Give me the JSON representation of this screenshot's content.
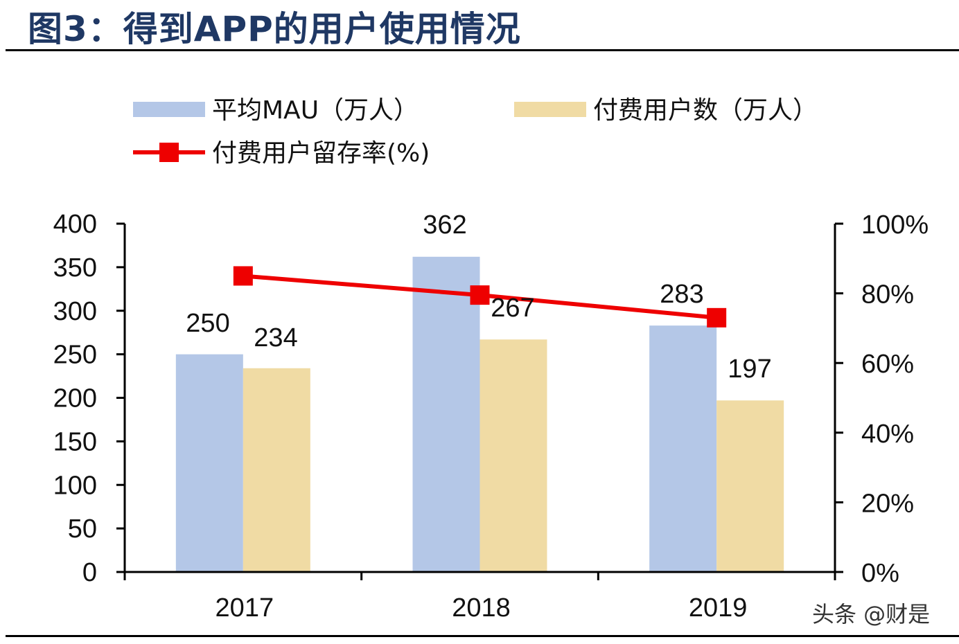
{
  "figure_title": "图3：得到APP的用户使用情况",
  "watermark": "头条 @财是",
  "chart_data": {
    "type": "bar",
    "categories": [
      "2017",
      "2018",
      "2019"
    ],
    "series": [
      {
        "name": "平均MAU（万人）",
        "kind": "bar",
        "axis": "left",
        "values": [
          250,
          362,
          283
        ],
        "color": "#b4c7e7"
      },
      {
        "name": "付费用户数（万人）",
        "kind": "bar",
        "axis": "left",
        "values": [
          234,
          267,
          197
        ],
        "color": "#f0dba4"
      },
      {
        "name": "付费用户留存率(%)",
        "kind": "line",
        "axis": "right",
        "values": [
          85,
          79.5,
          73
        ],
        "color": "#ee0000"
      }
    ],
    "left_axis": {
      "min": 0,
      "max": 400,
      "ticks": [
        "0",
        "50",
        "100",
        "150",
        "200",
        "250",
        "300",
        "350",
        "400"
      ]
    },
    "right_axis": {
      "min": 0,
      "max": 100,
      "ticks": [
        "0%",
        "20%",
        "40%",
        "60%",
        "80%",
        "100%"
      ]
    },
    "data_labels": true,
    "legend_position": "top",
    "grid": false
  }
}
